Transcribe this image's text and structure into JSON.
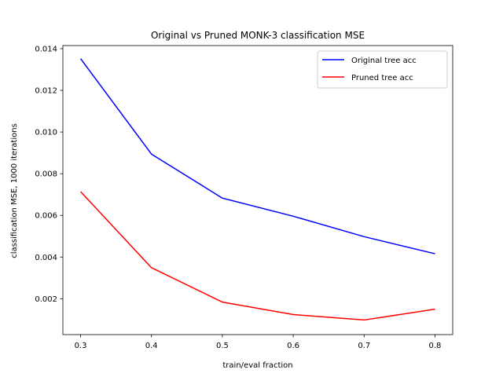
{
  "chart_data": {
    "type": "line",
    "title": "Original vs Pruned MONK-3 classification MSE",
    "xlabel": "train/eval fraction",
    "ylabel": "classification MSE, 1000 iterations",
    "x": [
      0.3,
      0.4,
      0.5,
      0.6,
      0.7,
      0.8
    ],
    "x_ticks": [
      "0.3",
      "0.4",
      "0.5",
      "0.6",
      "0.7",
      "0.8"
    ],
    "y_ticks": [
      "0.002",
      "0.004",
      "0.006",
      "0.008",
      "0.010",
      "0.012",
      "0.014"
    ],
    "xlim": [
      0.275,
      0.825
    ],
    "ylim": [
      0.00028,
      0.01415
    ],
    "grid": false,
    "legend_position": "top-right",
    "series": [
      {
        "name": "Original tree acc",
        "color": "#0000ff",
        "values": [
          0.01352,
          0.00894,
          0.00683,
          0.00596,
          0.00498,
          0.00416
        ]
      },
      {
        "name": "Pruned tree acc",
        "color": "#ff0000",
        "values": [
          0.00714,
          0.00349,
          0.00184,
          0.00124,
          0.00098,
          0.0015
        ]
      }
    ]
  }
}
